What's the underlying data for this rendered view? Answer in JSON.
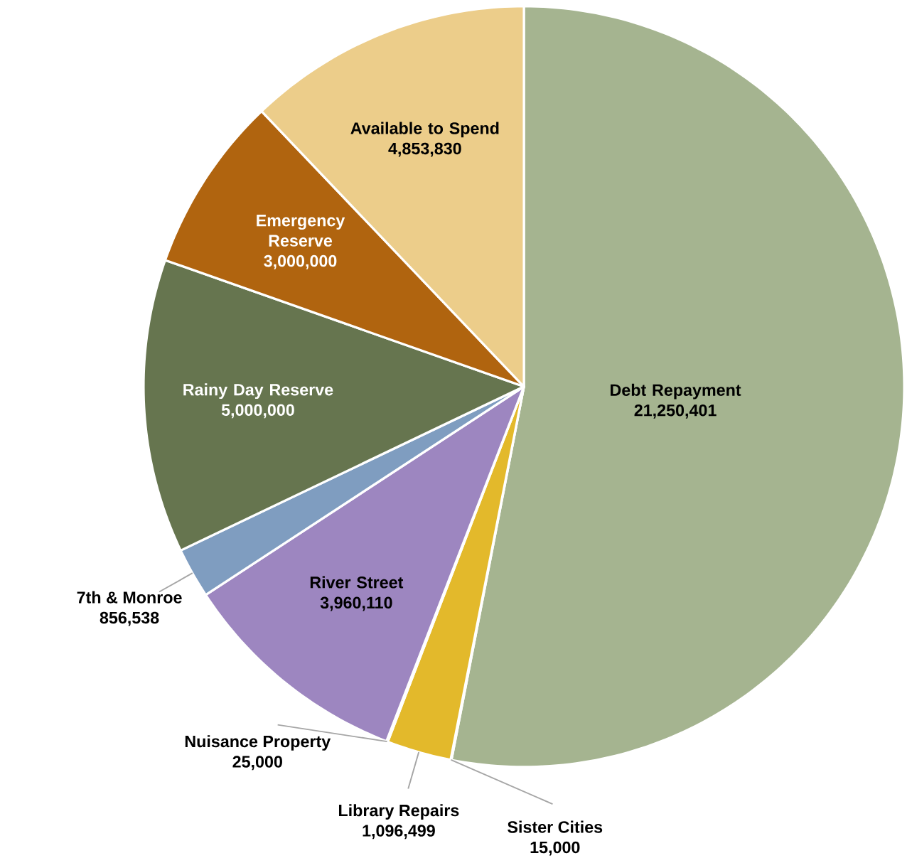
{
  "chart_data": {
    "type": "pie",
    "categories": [
      "Debt Repayment",
      "Sister Cities",
      "Library Repairs",
      "Nuisance Property",
      "River Street",
      "7th & Monroe",
      "Rainy Day Reserve",
      "Emergency Reserve",
      "Available to Spend"
    ],
    "values": [
      21250401,
      15000,
      1096499,
      25000,
      3960110,
      856538,
      5000000,
      3000000,
      4853830
    ],
    "colors": [
      "#a5b490",
      "#c9d4b8",
      "#e3b92b",
      "#d9c07a",
      "#9d86c0",
      "#7f9dc0",
      "#66754f",
      "#b0640f",
      "#eccd8a"
    ],
    "value_labels": [
      "21,250,401",
      "15,000",
      "1,096,499",
      "25,000",
      "3,960,110",
      "856,538",
      "5,000,000",
      "3,000,000",
      "4,853,830"
    ]
  }
}
